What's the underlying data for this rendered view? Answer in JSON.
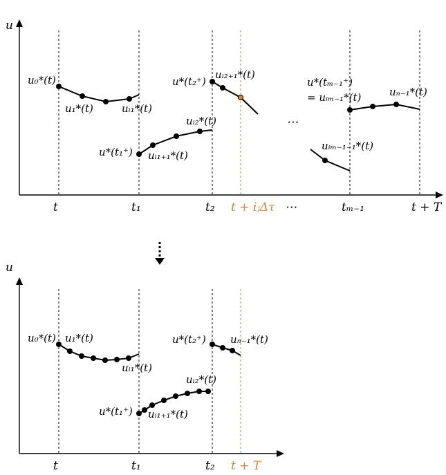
{
  "top": {
    "axis_label": "u",
    "ticks": [
      "t",
      "t₁",
      "t₂",
      "t + iⱼΔτ",
      "⋯",
      "tₘ₋₁",
      "t + T"
    ],
    "ellipsis": "⋯",
    "labels": {
      "u0": "u₀*(t)",
      "u1": "u₁*(t)",
      "ui1": "uᵢ₁*(t)",
      "u_t1plus": "u*(t₁⁺)",
      "ui1p1": "uᵢ₁₊₁*(t)",
      "ui2": "uᵢ₂*(t)",
      "u_t2plus": "u*(t₂⁺)",
      "ui2p1": "uᵢ₂₊₁*(t)",
      "u_tm1plus": "u*(tₘ₋₁⁺)",
      "eq_uim1": "= uᵢₘ₋₁*(t)",
      "uN1": "uₙ₋₁*(t)",
      "uim1m1": "uᵢₘ₋₁₋₁*(t)"
    }
  },
  "arrow": "down-dotted-arrow",
  "bottom": {
    "axis_label": "u",
    "ticks": [
      "t",
      "t₁",
      "t₂",
      "t + T"
    ],
    "labels": {
      "u0": "u₀*(t)",
      "u1": "u₁*(t)",
      "ui1": "uᵢ₁*(t)",
      "u_t1plus": "u*(t₁⁺)",
      "ui1p1": "uᵢ₁₊₁*(t)",
      "ui2": "uᵢ₂*(t)",
      "u_t2plus": "u*(t₂⁺)",
      "uN1": "uₙ₋₁*(t)"
    }
  },
  "colors": {
    "accent": "#d9823b",
    "ink": "#000000"
  }
}
